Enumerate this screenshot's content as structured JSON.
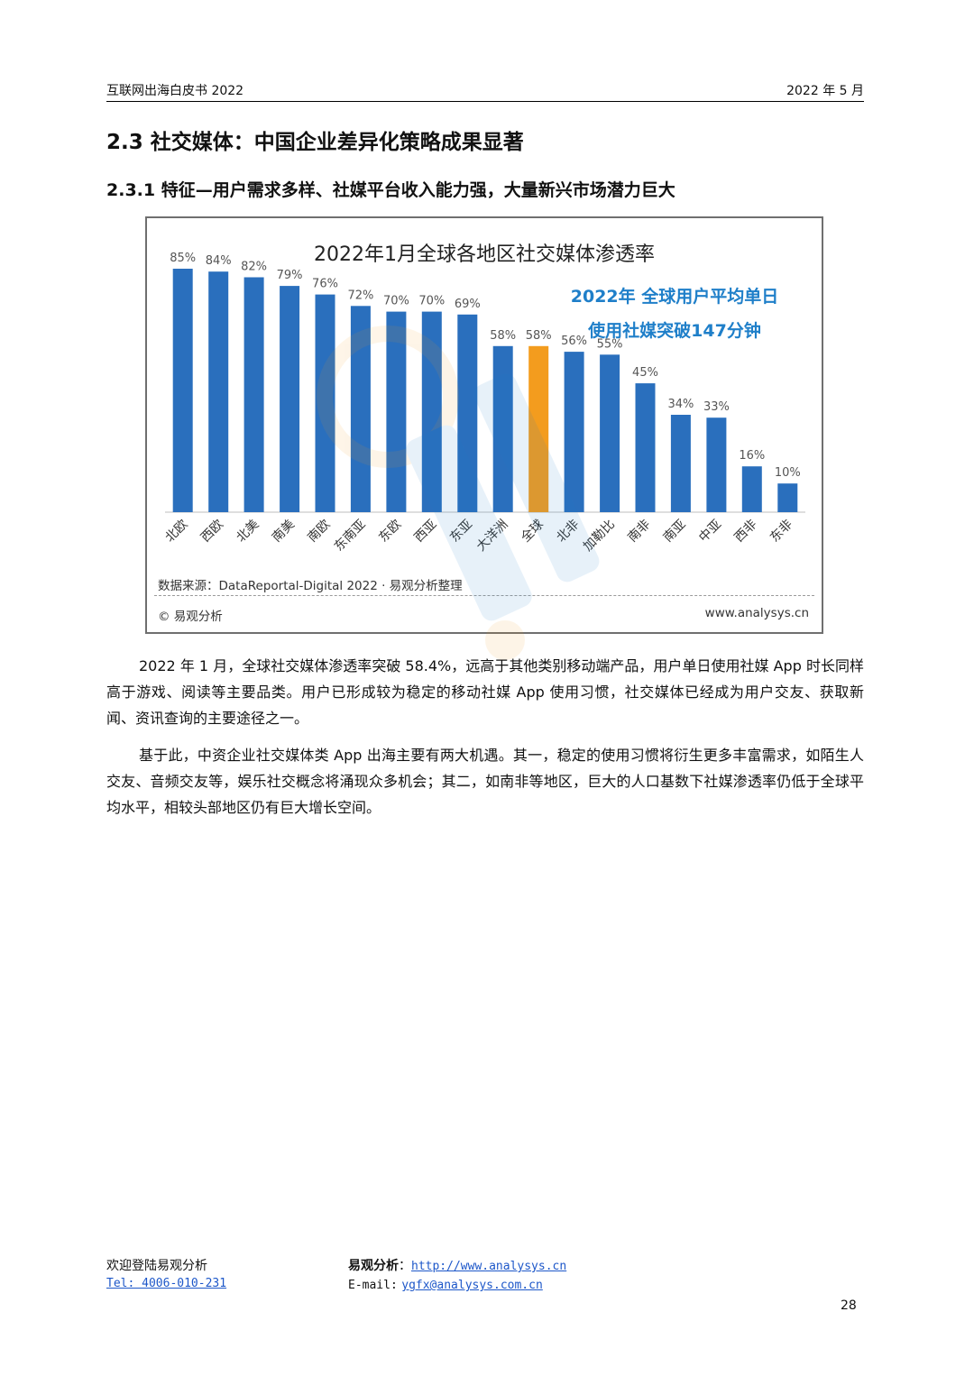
{
  "header": {
    "left": "互联网出海白皮书 2022",
    "right": "2022 年 5 月"
  },
  "section_title": "2.3 社交媒体：中国企业差异化策略成果显著",
  "subsection_title": "2.3.1  特征—用户需求多样、社媒平台收入能力强，大量新兴市场潜力巨大",
  "chart_data": {
    "type": "bar",
    "title": "2022年1月全球各地区社交媒体渗透率",
    "categories": [
      "北欧",
      "西欧",
      "北美",
      "南美",
      "南欧",
      "东南亚",
      "东欧",
      "西亚",
      "东亚",
      "大洋洲",
      "全球",
      "北非",
      "加勒比",
      "南非",
      "南亚",
      "中亚",
      "西非",
      "东非"
    ],
    "values": [
      85,
      84,
      82,
      79,
      76,
      72,
      70,
      70,
      69,
      58,
      58,
      56,
      55,
      45,
      34,
      33,
      16,
      10
    ],
    "value_labels": [
      "85%",
      "84%",
      "82%",
      "79%",
      "76%",
      "72%",
      "70%",
      "70%",
      "69%",
      "58%",
      "58%",
      "56%",
      "55%",
      "45%",
      "34%",
      "33%",
      "16%",
      "10%"
    ],
    "highlight_category": "全球",
    "colors": {
      "bar": "#2a6fbd",
      "highlight": "#f39c1e",
      "callout": "#1f7fc9"
    },
    "ylim": [
      0,
      100
    ],
    "callout": [
      "2022年 全球用户平均单日",
      "使用社媒突破147分钟"
    ],
    "source": "数据来源：DataReport­al-Digital 2022 · 易观分析整理",
    "copyright": "© 易观分析",
    "website": "www.analysys.cn"
  },
  "paragraphs": [
    "2022 年 1 月，全球社交媒体渗透率突破 58.4%，远高于其他类别移动端产品，用户单日使用社媒 App 时长同样高于游戏、阅读等主要品类。用户已形成较为稳定的移动社媒 App 使用习惯，社交媒体已经成为用户交友、获取新闻、资讯查询的主要途径之一。",
    "基于此，中资企业社交媒体类 App 出海主要有两大机遇。其一，稳定的使用习惯将衍生更多丰富需求，如陌生人交友、音频交友等，娱乐社交概念将涌现众多机会；其二，如南非等地区，巨大的人口基数下社媒渗透率仍低于全球平均水平，相较头部地区仍有巨大增长空间。"
  ],
  "footer": {
    "welcome": "欢迎登陆易观分析",
    "tel": "Tel:  4006-010-231",
    "brand": "易观分析",
    "url": "http://www.analysys.cn",
    "email_label": "E-mail:",
    "email": "ygfx@analysys.com.cn"
  },
  "page_number": "28"
}
